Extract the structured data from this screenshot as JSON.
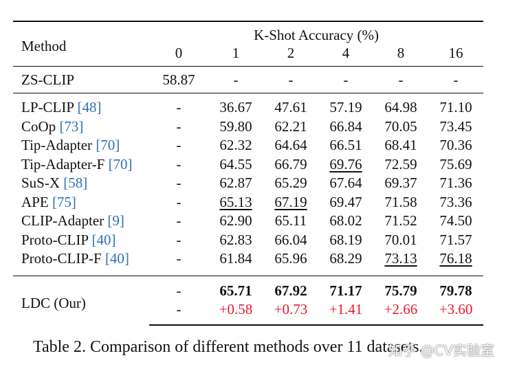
{
  "table": {
    "header": {
      "method_label": "Method",
      "group_label": "K-Shot Accuracy (%)",
      "shots": [
        "0",
        "1",
        "2",
        "4",
        "8",
        "16"
      ]
    },
    "zs_clip": {
      "method": "ZS-CLIP",
      "values": [
        "58.87",
        "-",
        "-",
        "-",
        "-",
        "-"
      ]
    },
    "rows": [
      {
        "method": "LP-CLIP ",
        "ref": "[48]",
        "values": [
          "-",
          "36.67",
          "47.61",
          "57.19",
          "64.98",
          "71.10"
        ]
      },
      {
        "method": "CoOp ",
        "ref": "[73]",
        "values": [
          "-",
          "59.80",
          "62.21",
          "66.84",
          "70.05",
          "73.45"
        ]
      },
      {
        "method": "Tip-Adapter ",
        "ref": "[70]",
        "values": [
          "-",
          "62.32",
          "64.64",
          "66.51",
          "68.41",
          "70.36"
        ]
      },
      {
        "method": "Tip-Adapter-F ",
        "ref": "[70]",
        "values": [
          "-",
          "64.55",
          "66.79",
          "69.76",
          "72.59",
          "75.69"
        ]
      },
      {
        "method": "SuS-X ",
        "ref": "[58]",
        "values": [
          "-",
          "62.87",
          "65.29",
          "67.64",
          "69.37",
          "71.36"
        ]
      },
      {
        "method": "APE ",
        "ref": "[75]",
        "values": [
          "-",
          "65.13",
          "67.19",
          "69.47",
          "71.58",
          "73.36"
        ]
      },
      {
        "method": "CLIP-Adapter ",
        "ref": "[9]",
        "values": [
          "-",
          "62.90",
          "65.11",
          "68.02",
          "71.52",
          "74.50"
        ]
      },
      {
        "method": "Proto-CLIP ",
        "ref": "[40]",
        "values": [
          "-",
          "62.83",
          "66.04",
          "68.19",
          "70.01",
          "71.57"
        ]
      },
      {
        "method": "Proto-CLIP-F ",
        "ref": "[40]",
        "values": [
          "-",
          "61.84",
          "65.96",
          "68.29",
          "73.13",
          "76.18"
        ]
      }
    ],
    "ldc": {
      "method": "LDC (Our)",
      "values": [
        "-",
        "65.71",
        "67.92",
        "71.17",
        "75.79",
        "79.78"
      ],
      "gains": [
        "-",
        "+0.58",
        "+0.73",
        "+1.41",
        "+2.66",
        "+3.60"
      ]
    }
  },
  "caption": "Table 2. Comparison of different methods over 11 datasets.",
  "watermark": "知乎 @CV实验室",
  "colors": {
    "ref": "#2f6fb6",
    "gain": "#e8182a",
    "text": "#111111"
  }
}
